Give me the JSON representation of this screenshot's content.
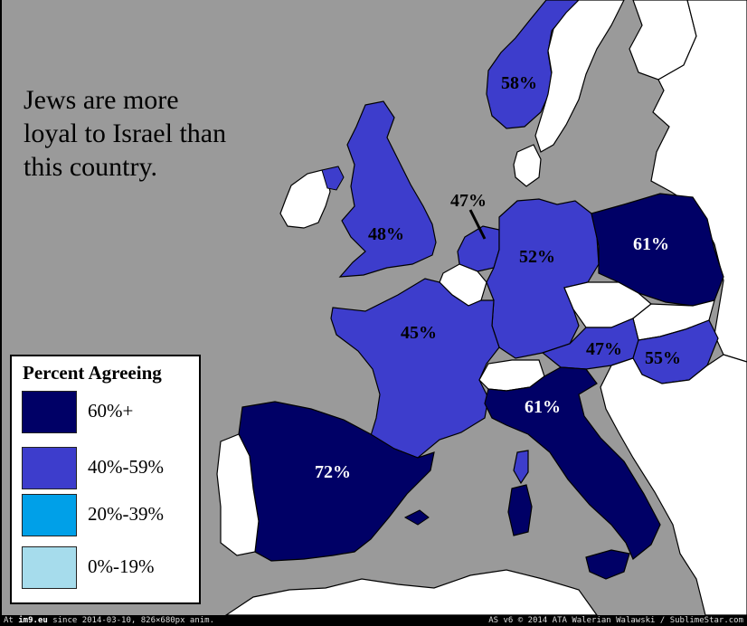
{
  "title_lines": [
    "Jews are more",
    "loyal to Israel than",
    "this country."
  ],
  "legend": {
    "title": "Percent Agreeing",
    "items": [
      {
        "label": "60%+",
        "color": "#000066"
      },
      {
        "label": "40%-59%",
        "color": "#3d3dcc"
      },
      {
        "label": "20%-39%",
        "color": "#00a0e8"
      },
      {
        "label": "0%-19%",
        "color": "#a6dcec"
      }
    ]
  },
  "countries": {
    "norway": {
      "value": "58%",
      "color": "#3d3dcc"
    },
    "uk": {
      "value": "48%",
      "color": "#3d3dcc"
    },
    "netherlands": {
      "value": "47%",
      "color": "#3d3dcc"
    },
    "germany": {
      "value": "52%",
      "color": "#3d3dcc"
    },
    "poland": {
      "value": "61%",
      "color": "#000066"
    },
    "france": {
      "value": "45%",
      "color": "#3d3dcc"
    },
    "austria": {
      "value": "47%",
      "color": "#3d3dcc"
    },
    "hungary": {
      "value": "55%",
      "color": "#3d3dcc"
    },
    "italy": {
      "value": "61%",
      "color": "#000066"
    },
    "spain": {
      "value": "72%",
      "color": "#000066"
    }
  },
  "colors": {
    "sea": "#9a9a9a",
    "no_data": "#ffffff",
    "border": "#000000"
  },
  "footer": {
    "site": "im9.eu",
    "left_prefix": "At ",
    "left_suffix": " since 2014-03-10, 826×680px anim.",
    "right": "AS v6 © 2014 ATA Walerian Walawski / SublimeStar.com"
  }
}
